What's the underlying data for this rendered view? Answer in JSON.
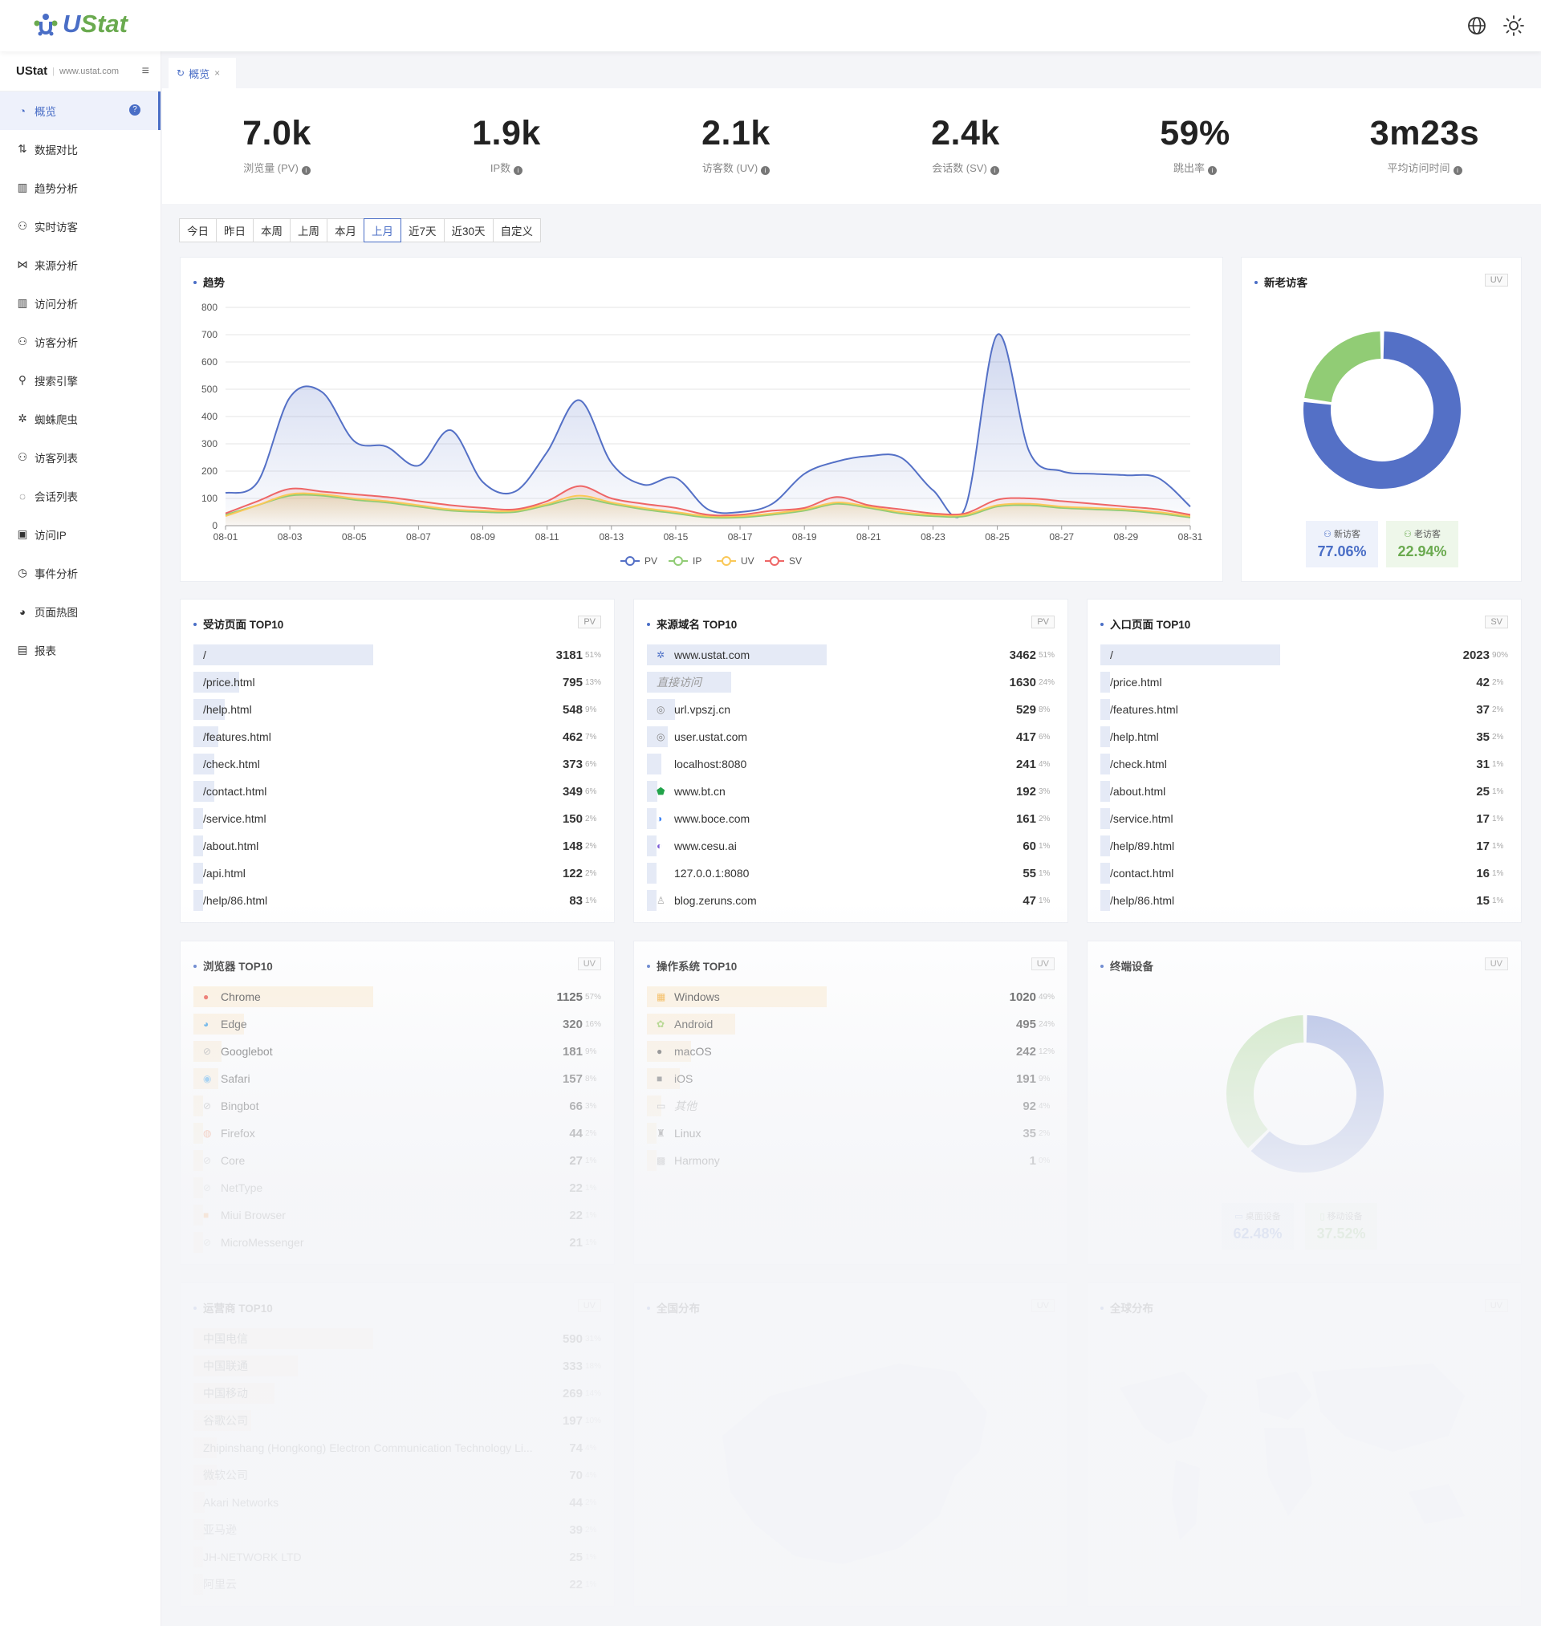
{
  "app": {
    "logo_text_u": "U",
    "logo_text_rest": "Stat",
    "brand": "UStat",
    "brand_domain": "www.ustat.com"
  },
  "topbar": {
    "icons": [
      "globe-icon",
      "sun-icon"
    ]
  },
  "sidebar": {
    "items": [
      {
        "label": "概览",
        "icon": "dashboard-icon",
        "active": true
      },
      {
        "label": "数据对比",
        "icon": "compare-icon"
      },
      {
        "label": "趋势分析",
        "icon": "chart-icon"
      },
      {
        "label": "实时访客",
        "icon": "user-icon"
      },
      {
        "label": "来源分析",
        "icon": "share-icon"
      },
      {
        "label": "访问分析",
        "icon": "chart-icon"
      },
      {
        "label": "访客分析",
        "icon": "user-icon"
      },
      {
        "label": "搜索引擎",
        "icon": "search-icon"
      },
      {
        "label": "蜘蛛爬虫",
        "icon": "bug-icon"
      },
      {
        "label": "访客列表",
        "icon": "user-icon"
      },
      {
        "label": "会话列表",
        "icon": "chat-icon"
      },
      {
        "label": "访问IP",
        "icon": "ip-icon"
      },
      {
        "label": "事件分析",
        "icon": "clock-icon"
      },
      {
        "label": "页面热图",
        "icon": "heatmap-icon"
      },
      {
        "label": "报表",
        "icon": "report-icon"
      }
    ]
  },
  "tabs": [
    {
      "label": "概览"
    }
  ],
  "stats": [
    {
      "value": "7.0k",
      "label": "浏览量 (PV)"
    },
    {
      "value": "1.9k",
      "label": "IP数"
    },
    {
      "value": "2.1k",
      "label": "访客数 (UV)"
    },
    {
      "value": "2.4k",
      "label": "会话数 (SV)"
    },
    {
      "value": "59%",
      "label": "跳出率"
    },
    {
      "value": "3m23s",
      "label": "平均访问时间"
    }
  ],
  "date_ranges": [
    "今日",
    "昨日",
    "本周",
    "上周",
    "本月",
    "上月",
    "近7天",
    "近30天",
    "自定义"
  ],
  "date_selected": "上月",
  "trend": {
    "title": "趋势",
    "chart_data": {
      "type": "area",
      "x": [
        "08-01",
        "08-02",
        "08-03",
        "08-04",
        "08-05",
        "08-06",
        "08-07",
        "08-08",
        "08-09",
        "08-10",
        "08-11",
        "08-12",
        "08-13",
        "08-14",
        "08-15",
        "08-16",
        "08-17",
        "08-18",
        "08-19",
        "08-20",
        "08-21",
        "08-22",
        "08-23",
        "08-24",
        "08-25",
        "08-26",
        "08-27",
        "08-28",
        "08-29",
        "08-30",
        "08-31"
      ],
      "xticks": [
        "08-01",
        "08-03",
        "08-05",
        "08-07",
        "08-09",
        "08-11",
        "08-13",
        "08-15",
        "08-17",
        "08-19",
        "08-21",
        "08-23",
        "08-25",
        "08-27",
        "08-29",
        "08-31"
      ],
      "ylim": [
        0,
        800
      ],
      "yticks": [
        0,
        100,
        200,
        300,
        400,
        500,
        600,
        700,
        800
      ],
      "series": [
        {
          "name": "PV",
          "color": "#5470c6",
          "values": [
            120,
            160,
            470,
            490,
            310,
            290,
            220,
            350,
            160,
            125,
            270,
            460,
            230,
            150,
            175,
            60,
            50,
            80,
            190,
            235,
            255,
            250,
            130,
            65,
            700,
            270,
            200,
            190,
            185,
            175,
            70
          ]
        },
        {
          "name": "IP",
          "color": "#91cc75",
          "values": [
            40,
            75,
            110,
            110,
            95,
            85,
            70,
            55,
            50,
            50,
            75,
            100,
            80,
            60,
            45,
            30,
            30,
            40,
            55,
            80,
            65,
            45,
            35,
            35,
            70,
            75,
            65,
            60,
            55,
            45,
            30
          ]
        },
        {
          "name": "UV",
          "color": "#fac858",
          "values": [
            35,
            75,
            115,
            115,
            100,
            90,
            75,
            60,
            55,
            55,
            80,
            110,
            85,
            65,
            50,
            35,
            35,
            45,
            60,
            85,
            70,
            50,
            40,
            40,
            75,
            80,
            70,
            65,
            60,
            50,
            35
          ]
        },
        {
          "name": "SV",
          "color": "#ee6666",
          "values": [
            45,
            90,
            135,
            125,
            115,
            105,
            90,
            75,
            65,
            60,
            90,
            145,
            100,
            80,
            65,
            40,
            40,
            55,
            65,
            105,
            75,
            60,
            45,
            45,
            95,
            100,
            90,
            80,
            70,
            60,
            40
          ]
        }
      ],
      "legend": "bottom"
    }
  },
  "newold": {
    "title": "新老访客",
    "tag": "UV",
    "new_label": "新访客",
    "new_value": "77.06%",
    "old_label": "老访客",
    "old_value": "22.94%",
    "chart_data": {
      "type": "pie",
      "values": [
        77.06,
        22.94
      ],
      "colors": [
        "#5470c6",
        "#91cc75"
      ]
    }
  },
  "pages": {
    "title": "受访页面 TOP10",
    "tag": "PV",
    "rows": [
      {
        "name": "/",
        "value": "3181",
        "pct": "51%",
        "ratio": 0.51
      },
      {
        "name": "/price.html",
        "value": "795",
        "pct": "13%",
        "ratio": 0.13
      },
      {
        "name": "/help.html",
        "value": "548",
        "pct": "9%",
        "ratio": 0.09
      },
      {
        "name": "/features.html",
        "value": "462",
        "pct": "7%",
        "ratio": 0.07
      },
      {
        "name": "/check.html",
        "value": "373",
        "pct": "6%",
        "ratio": 0.06
      },
      {
        "name": "/contact.html",
        "value": "349",
        "pct": "6%",
        "ratio": 0.06
      },
      {
        "name": "/service.html",
        "value": "150",
        "pct": "2%",
        "ratio": 0.02
      },
      {
        "name": "/about.html",
        "value": "148",
        "pct": "2%",
        "ratio": 0.02
      },
      {
        "name": "/api.html",
        "value": "122",
        "pct": "2%",
        "ratio": 0.02
      },
      {
        "name": "/help/86.html",
        "value": "83",
        "pct": "1%",
        "ratio": 0.01
      }
    ]
  },
  "domains": {
    "title": "来源域名 TOP10",
    "tag": "PV",
    "rows": [
      {
        "name": "www.ustat.com",
        "value": "3462",
        "pct": "51%",
        "ratio": 0.51,
        "icon": "ustat-icon"
      },
      {
        "name": "直接访问",
        "value": "1630",
        "pct": "24%",
        "ratio": 0.24,
        "italic": true
      },
      {
        "name": "url.vpszj.cn",
        "value": "529",
        "pct": "8%",
        "ratio": 0.08,
        "icon": "globe-icon"
      },
      {
        "name": "user.ustat.com",
        "value": "417",
        "pct": "6%",
        "ratio": 0.06,
        "icon": "globe-icon"
      },
      {
        "name": "localhost:8080",
        "value": "241",
        "pct": "4%",
        "ratio": 0.04
      },
      {
        "name": "www.bt.cn",
        "value": "192",
        "pct": "3%",
        "ratio": 0.03,
        "icon": "shield-icon"
      },
      {
        "name": "www.boce.com",
        "value": "161",
        "pct": "2%",
        "ratio": 0.02,
        "icon": "boce-icon"
      },
      {
        "name": "www.cesu.ai",
        "value": "60",
        "pct": "1%",
        "ratio": 0.01,
        "icon": "cesu-icon"
      },
      {
        "name": "127.0.0.1:8080",
        "value": "55",
        "pct": "1%",
        "ratio": 0.01
      },
      {
        "name": "blog.zeruns.com",
        "value": "47",
        "pct": "1%",
        "ratio": 0.01,
        "icon": "person-icon"
      }
    ]
  },
  "entries": {
    "title": "入口页面 TOP10",
    "tag": "SV",
    "rows": [
      {
        "name": "/",
        "value": "2023",
        "pct": "90%",
        "ratio": 0.9
      },
      {
        "name": "/price.html",
        "value": "42",
        "pct": "2%",
        "ratio": 0.02
      },
      {
        "name": "/features.html",
        "value": "37",
        "pct": "2%",
        "ratio": 0.02
      },
      {
        "name": "/help.html",
        "value": "35",
        "pct": "2%",
        "ratio": 0.02
      },
      {
        "name": "/check.html",
        "value": "31",
        "pct": "1%",
        "ratio": 0.01
      },
      {
        "name": "/about.html",
        "value": "25",
        "pct": "1%",
        "ratio": 0.01
      },
      {
        "name": "/service.html",
        "value": "17",
        "pct": "1%",
        "ratio": 0.01
      },
      {
        "name": "/help/89.html",
        "value": "17",
        "pct": "1%",
        "ratio": 0.01
      },
      {
        "name": "/contact.html",
        "value": "16",
        "pct": "1%",
        "ratio": 0.01
      },
      {
        "name": "/help/86.html",
        "value": "15",
        "pct": "1%",
        "ratio": 0.01
      }
    ]
  },
  "browsers": {
    "title": "浏览器 TOP10",
    "tag": "UV",
    "rows": [
      {
        "name": "Chrome",
        "value": "1125",
        "pct": "57%",
        "ratio": 0.57,
        "icon": "chrome-icon"
      },
      {
        "name": "Edge",
        "value": "320",
        "pct": "16%",
        "ratio": 0.16,
        "icon": "edge-icon"
      },
      {
        "name": "Googlebot",
        "value": "181",
        "pct": "9%",
        "ratio": 0.09,
        "icon": "bot-icon"
      },
      {
        "name": "Safari",
        "value": "157",
        "pct": "8%",
        "ratio": 0.08,
        "icon": "safari-icon"
      },
      {
        "name": "Bingbot",
        "value": "66",
        "pct": "3%",
        "ratio": 0.03,
        "icon": "bot-icon"
      },
      {
        "name": "Firefox",
        "value": "44",
        "pct": "2%",
        "ratio": 0.02,
        "icon": "firefox-icon"
      },
      {
        "name": "Core",
        "value": "27",
        "pct": "1%",
        "ratio": 0.01,
        "icon": "bot-icon"
      },
      {
        "name": "NetType",
        "value": "22",
        "pct": "1%",
        "ratio": 0.01,
        "icon": "bot-icon"
      },
      {
        "name": "Miui Browser",
        "value": "22",
        "pct": "1%",
        "ratio": 0.01,
        "icon": "miui-icon"
      },
      {
        "name": "MicroMessenger",
        "value": "21",
        "pct": "1%",
        "ratio": 0.01,
        "icon": "bot-icon"
      }
    ]
  },
  "os": {
    "title": "操作系统 TOP10",
    "tag": "UV",
    "rows": [
      {
        "name": "Windows",
        "value": "1020",
        "pct": "49%",
        "ratio": 0.49,
        "icon": "windows-icon"
      },
      {
        "name": "Android",
        "value": "495",
        "pct": "24%",
        "ratio": 0.24,
        "icon": "android-icon"
      },
      {
        "name": "macOS",
        "value": "242",
        "pct": "12%",
        "ratio": 0.12,
        "icon": "apple-icon"
      },
      {
        "name": "iOS",
        "value": "191",
        "pct": "9%",
        "ratio": 0.09,
        "icon": "ios-icon"
      },
      {
        "name": "其他",
        "value": "92",
        "pct": "4%",
        "ratio": 0.04,
        "icon": "os-icon",
        "italic": true
      },
      {
        "name": "Linux",
        "value": "35",
        "pct": "2%",
        "ratio": 0.02,
        "icon": "linux-icon"
      },
      {
        "name": "Harmony",
        "value": "1",
        "pct": "0%",
        "ratio": 0.0,
        "icon": "harmony-icon"
      }
    ]
  },
  "devices": {
    "title": "终端设备",
    "tag": "UV",
    "desktop_label": "桌面设备",
    "desktop_value": "62.48%",
    "mobile_label": "移动设备",
    "mobile_value": "37.52%",
    "chart_data": {
      "type": "pie",
      "values": [
        62.48,
        37.52
      ],
      "colors": [
        "#5470c6",
        "#91cc75"
      ]
    }
  },
  "isp": {
    "title": "运营商 TOP10",
    "tag": "UV",
    "rows": [
      {
        "name": "中国电信",
        "value": "590",
        "pct": "31%",
        "ratio": 0.31
      },
      {
        "name": "中国联通",
        "value": "333",
        "pct": "18%",
        "ratio": 0.18
      },
      {
        "name": "中国移动",
        "value": "269",
        "pct": "14%",
        "ratio": 0.14
      },
      {
        "name": "谷歌公司",
        "value": "197",
        "pct": "10%",
        "ratio": 0.1
      },
      {
        "name": "Zhipinshang (Hongkong) Electron Communication Technology Li...",
        "value": "74",
        "pct": "4%",
        "ratio": 0.04
      },
      {
        "name": "微软公司",
        "value": "70",
        "pct": "4%",
        "ratio": 0.04
      },
      {
        "name": "Akari Networks",
        "value": "44",
        "pct": "2%",
        "ratio": 0.02
      },
      {
        "name": "亚马逊",
        "value": "39",
        "pct": "2%",
        "ratio": 0.02
      },
      {
        "name": "JH-NETWORK LTD",
        "value": "25",
        "pct": "1%",
        "ratio": 0.01
      },
      {
        "name": "阿里云",
        "value": "22",
        "pct": "1%",
        "ratio": 0.01
      }
    ]
  },
  "china_map": {
    "title": "全国分布",
    "tag": "UV"
  },
  "world_map": {
    "title": "全球分布",
    "tag": "UV"
  }
}
